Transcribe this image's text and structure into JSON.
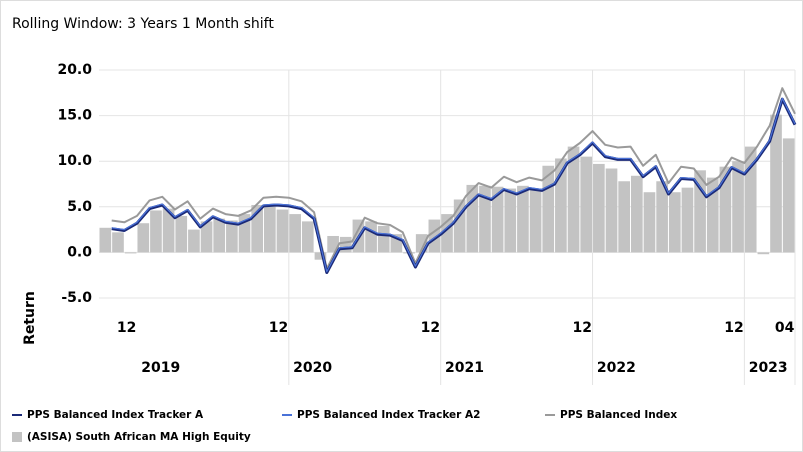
{
  "chart_data": {
    "type": "bar",
    "title": "Rolling Window: 3 Years 1 Month shift",
    "y_label": "Return",
    "categories": [
      null,
      null,
      "12",
      null,
      null,
      null,
      null,
      null,
      null,
      null,
      null,
      null,
      null,
      null,
      "12",
      null,
      null,
      null,
      null,
      null,
      null,
      null,
      null,
      null,
      null,
      null,
      "12",
      null,
      null,
      null,
      null,
      null,
      null,
      null,
      null,
      null,
      null,
      null,
      "12",
      null,
      null,
      null,
      null,
      null,
      null,
      null,
      null,
      null,
      null,
      null,
      "12",
      null,
      null,
      null,
      "04"
    ],
    "year_labels": [
      "2019",
      "2020",
      "2021",
      "2022",
      "2023"
    ],
    "ylim": [
      -5,
      20
    ],
    "yticks": [
      {
        "value": -5,
        "label": "-5.0"
      },
      {
        "value": 0,
        "label": "0.0"
      },
      {
        "value": 5,
        "label": "5.0"
      },
      {
        "value": 10,
        "label": "10.0"
      },
      {
        "value": 15,
        "label": "15.0"
      },
      {
        "value": 20,
        "label": "20.0"
      }
    ],
    "grid": true,
    "series": [
      {
        "name": "PPS Balanced Index Tracker A",
        "type": "line",
        "color": "#1b2a78",
        "values": [
          2.6,
          2.4,
          3.2,
          4.8,
          5.2,
          3.8,
          4.6,
          2.8,
          3.9,
          3.3,
          3.1,
          3.7,
          5.1,
          5.2,
          5.1,
          4.8,
          3.7,
          -2.2,
          0.4,
          0.5,
          2.7,
          2.0,
          1.9,
          1.3,
          -1.6,
          1.0,
          2.0,
          3.2,
          5.0,
          6.3,
          5.8,
          6.9,
          6.4,
          7.0,
          6.8,
          7.5,
          9.8,
          10.7,
          12.0,
          10.5,
          10.2,
          10.2,
          8.3,
          9.4,
          6.4,
          8.1,
          8.0,
          6.1,
          7.1,
          9.3,
          8.6,
          10.2,
          12.2,
          16.8,
          14.0
        ]
      },
      {
        "name": "PPS Balanced Index Tracker A2",
        "type": "line",
        "color": "#4a72d8",
        "values": [
          2.7,
          2.5,
          3.3,
          4.9,
          5.3,
          3.9,
          4.7,
          2.9,
          4.0,
          3.4,
          3.2,
          3.8,
          5.2,
          5.3,
          5.2,
          4.9,
          3.8,
          -2.1,
          0.5,
          0.6,
          2.8,
          2.1,
          2.0,
          1.4,
          -1.5,
          1.1,
          2.1,
          3.3,
          5.1,
          6.4,
          5.9,
          7.0,
          6.5,
          7.1,
          6.9,
          7.6,
          9.9,
          10.8,
          12.1,
          10.6,
          10.3,
          10.3,
          8.4,
          9.5,
          6.5,
          8.2,
          8.1,
          6.2,
          7.2,
          9.4,
          8.7,
          10.3,
          12.3,
          16.9,
          14.1
        ]
      },
      {
        "name": "PPS Balanced Index",
        "type": "line",
        "color": "#9a9a9a",
        "values": [
          3.5,
          3.3,
          4.0,
          5.7,
          6.1,
          4.7,
          5.6,
          3.7,
          4.8,
          4.2,
          4.0,
          4.6,
          6.0,
          6.1,
          6.0,
          5.6,
          4.4,
          -1.8,
          1.0,
          1.2,
          3.8,
          3.2,
          3.0,
          2.2,
          -1.2,
          1.8,
          2.8,
          4.0,
          6.2,
          7.6,
          7.1,
          8.3,
          7.7,
          8.2,
          7.9,
          9.0,
          11.0,
          12.0,
          13.3,
          11.8,
          11.5,
          11.6,
          9.5,
          10.7,
          7.6,
          9.4,
          9.2,
          7.4,
          8.3,
          10.4,
          9.8,
          11.6,
          13.9,
          18.0,
          15.2
        ]
      },
      {
        "name": "(ASISA) South African MA High Equity",
        "type": "bar",
        "color": "#c3c3c3",
        "values": [
          2.7,
          2.2,
          -0.1,
          3.2,
          4.6,
          4.8,
          4.0,
          2.5,
          3.4,
          3.7,
          3.5,
          4.2,
          5.2,
          5.1,
          4.7,
          4.2,
          3.4,
          -0.8,
          1.8,
          1.7,
          3.6,
          3.4,
          2.9,
          2.0,
          -0.1,
          2.0,
          3.6,
          4.2,
          5.8,
          7.4,
          7.3,
          7.2,
          7.0,
          7.3,
          7.0,
          9.5,
          10.3,
          11.6,
          10.5,
          9.7,
          9.2,
          7.8,
          8.4,
          6.6,
          7.8,
          6.6,
          7.1,
          9.0,
          8.2,
          9.4,
          10.0,
          11.6,
          -0.2,
          15.1,
          12.5
        ]
      }
    ]
  }
}
